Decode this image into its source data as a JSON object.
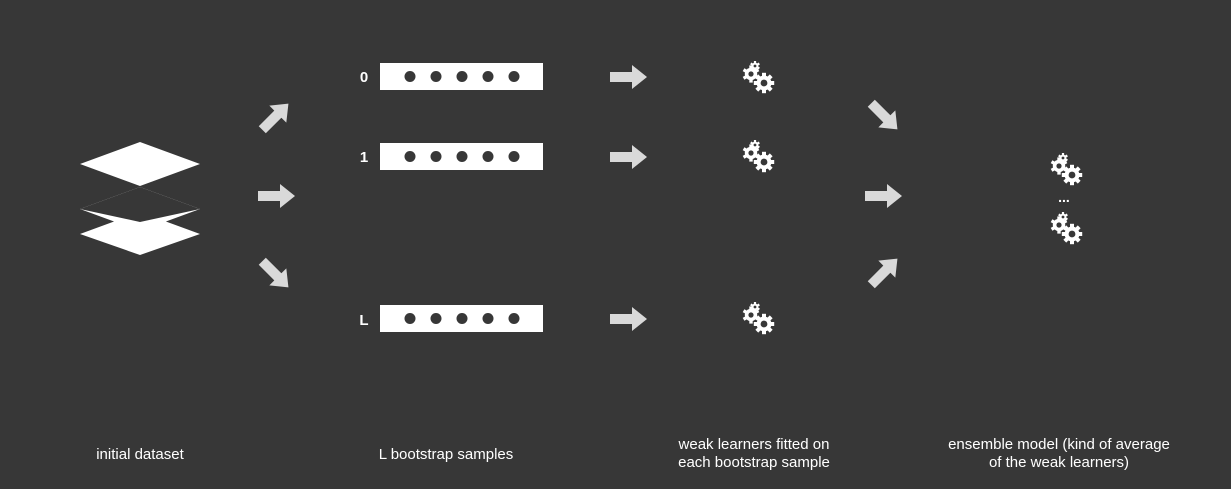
{
  "colors": {
    "background": "#373737",
    "foreground": "#ffffff",
    "arrow": "#d9d9d9",
    "dot": "#373737"
  },
  "dataset": {
    "icon": "stacked-layers-icon"
  },
  "samples": [
    {
      "label": "0",
      "dots": 5
    },
    {
      "label": "1",
      "dots": 5
    },
    {
      "label": "L",
      "dots": 5
    }
  ],
  "learners": {
    "icon": "gears-icon",
    "count": 3
  },
  "ensemble": {
    "icon": "gears-icon",
    "separator": "..."
  },
  "captions": {
    "dataset": "initial dataset",
    "samples": "L bootstrap samples",
    "learners_line1": "weak learners fitted on",
    "learners_line2": "each bootstrap sample",
    "ensemble_line1": "ensemble model (kind of average",
    "ensemble_line2": "of the weak learners)"
  }
}
